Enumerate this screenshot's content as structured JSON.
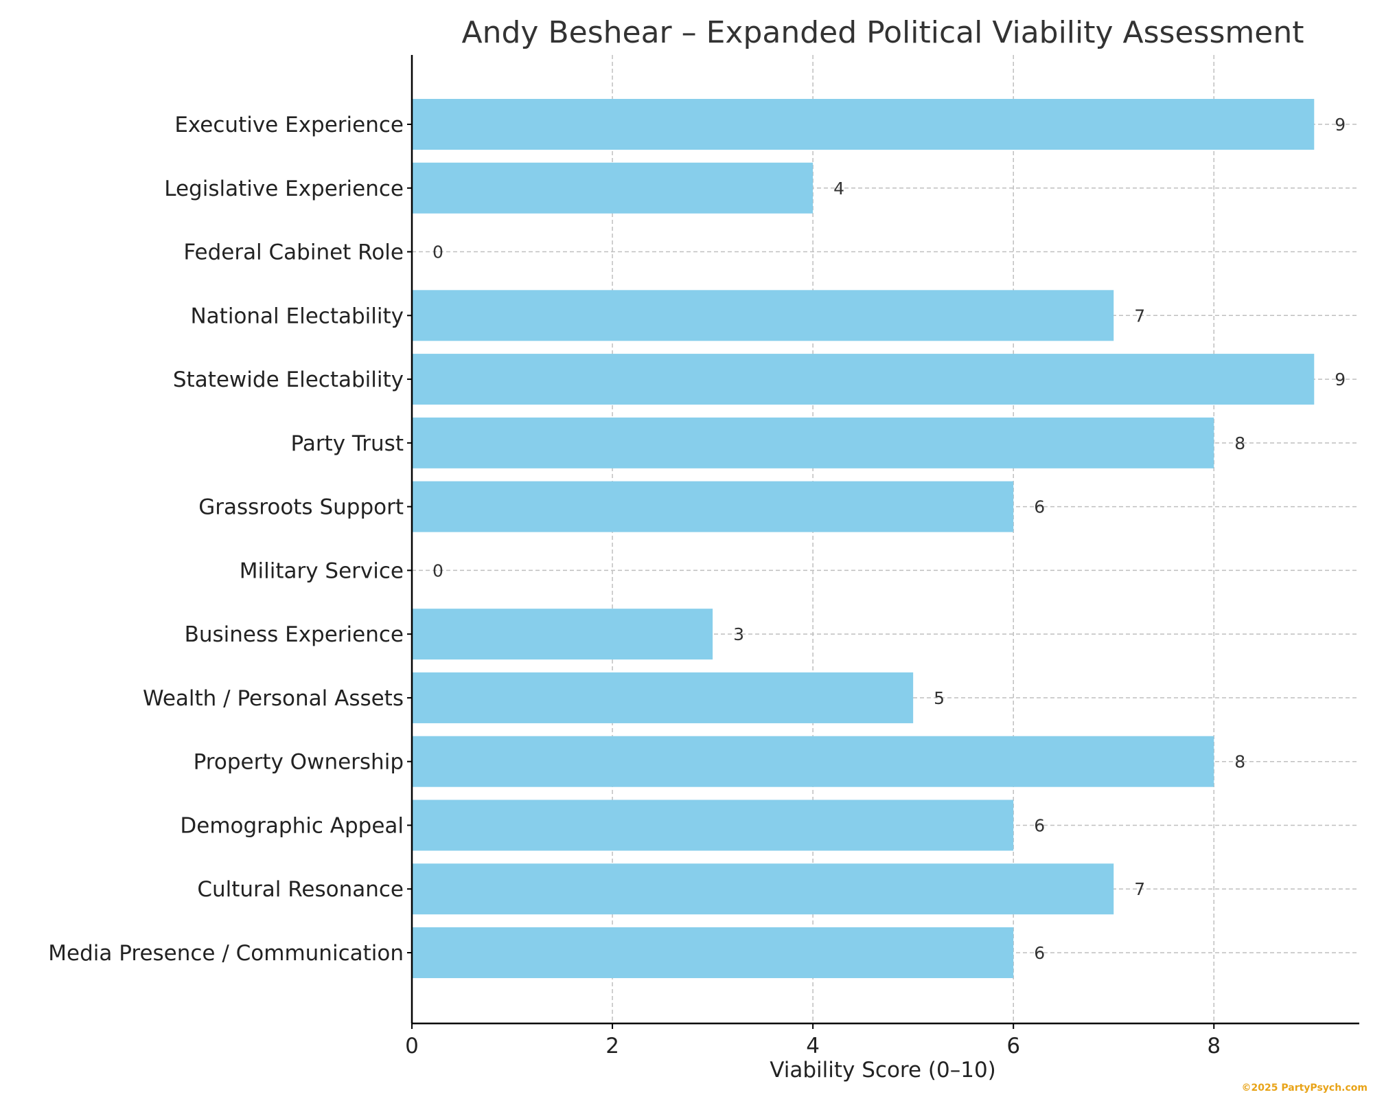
{
  "chart_data": {
    "type": "bar",
    "orientation": "horizontal",
    "title": "Andy Beshear – Expanded Political Viability Assessment",
    "xlabel": "Viability Score (0–10)",
    "ylabel": "",
    "xlim": [
      0,
      9.45
    ],
    "xticks": [
      0,
      2,
      4,
      6,
      8
    ],
    "grid": true,
    "categories": [
      "Executive Experience",
      "Legislative Experience",
      "Federal Cabinet Role",
      "National Electability",
      "Statewide Electability",
      "Party Trust",
      "Grassroots Support",
      "Military Service",
      "Business Experience",
      "Wealth / Personal Assets",
      "Property Ownership",
      "Demographic Appeal",
      "Cultural Resonance",
      "Media Presence / Communication"
    ],
    "values": [
      9,
      4,
      0,
      7,
      9,
      8,
      6,
      0,
      3,
      5,
      8,
      6,
      7,
      6
    ],
    "bar_color": "#87ceeb"
  },
  "watermark": "©2025 PartyPsych.com"
}
